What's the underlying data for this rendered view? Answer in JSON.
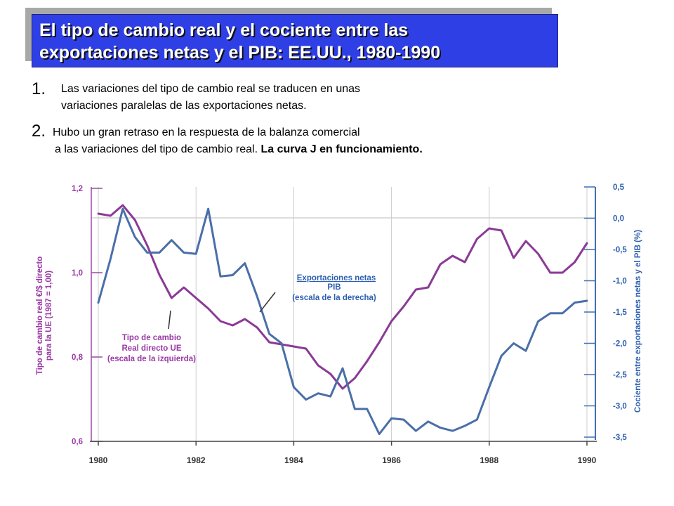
{
  "slide": {
    "title_line1": "El tipo de cambio real y el cociente entre las",
    "title_line2": "exportaciones netas y el PIB:  EE.UU., 1980-1990",
    "bullets": [
      {
        "num": "1.",
        "line1": "Las variaciones del tipo de cambio real se traducen en unas",
        "line2": "variaciones paralelas de las exportaciones netas."
      },
      {
        "num": "2.",
        "line1": "Hubo un gran retraso en la respuesta de la balanza comercial",
        "line2_plain": "a las variaciones del tipo de cambio real.  ",
        "line2_bold": "La curva J en funcionamiento."
      }
    ]
  },
  "chart_data": {
    "type": "line",
    "x_ticks": [
      "1980",
      "1982",
      "1984",
      "1986",
      "1988",
      "1990"
    ],
    "xlim": [
      1980,
      1990
    ],
    "left_axis": {
      "label_line1": "Tipo de cambio real €/$ directo",
      "label_line2": "para la UE (1987 = 1,00)",
      "ticks": [
        "1,2",
        "1,0",
        "0,8",
        "0,6"
      ],
      "ylim": [
        0.6,
        1.2
      ]
    },
    "right_axis": {
      "label": "Cociente entre exportaciones netas y el PIB (%)",
      "ticks": [
        "0,5",
        "0,0",
        "-0,5",
        "-1,0",
        "-1,5",
        "-2,0",
        "-2,5",
        "-3,0",
        "-3,5"
      ],
      "ylim": [
        -3.5,
        0.5
      ]
    },
    "series": [
      {
        "name": "Tipo de cambio Real directo UE (escala de la izquierda)",
        "label_line1": "Tipo de cambio",
        "label_line2": "Real directo UE",
        "label_line3": "(escala de la izquierda)",
        "axis": "left",
        "color": "#8b3a96",
        "x": [
          1980.0,
          1980.25,
          1980.5,
          1980.75,
          1981.0,
          1981.25,
          1981.5,
          1981.75,
          1982.0,
          1982.25,
          1982.5,
          1982.75,
          1983.0,
          1983.25,
          1983.5,
          1983.75,
          1984.0,
          1984.25,
          1984.5,
          1984.75,
          1985.0,
          1985.25,
          1985.5,
          1985.75,
          1986.0,
          1986.25,
          1986.5,
          1986.75,
          1987.0,
          1987.25,
          1987.5,
          1987.75,
          1988.0,
          1988.25,
          1988.5,
          1988.75,
          1989.0,
          1989.25,
          1989.5,
          1989.75,
          1990.0
        ],
        "values": [
          1.14,
          1.135,
          1.16,
          1.125,
          1.065,
          0.995,
          0.94,
          0.965,
          0.94,
          0.915,
          0.885,
          0.875,
          0.89,
          0.87,
          0.835,
          0.83,
          0.825,
          0.82,
          0.78,
          0.76,
          0.725,
          0.75,
          0.79,
          0.835,
          0.885,
          0.92,
          0.96,
          0.965,
          1.02,
          1.04,
          1.025,
          1.08,
          1.105,
          1.1,
          1.035,
          1.075,
          1.045,
          1.0,
          1.0,
          1.025,
          1.07
        ]
      },
      {
        "name": "Exportaciones netas PIB (escala de la derecha)",
        "label_line1": "Exportaciones netas",
        "label_line2": "PIB",
        "label_line3": "(escala de la derecha)",
        "axis": "right",
        "color": "#4a6fa8",
        "x": [
          1980.0,
          1980.25,
          1980.5,
          1980.75,
          1981.0,
          1981.25,
          1981.5,
          1981.75,
          1982.0,
          1982.25,
          1982.5,
          1982.75,
          1983.0,
          1983.25,
          1983.5,
          1983.75,
          1984.0,
          1984.25,
          1984.5,
          1984.75,
          1985.0,
          1985.25,
          1985.5,
          1985.75,
          1986.0,
          1986.25,
          1986.5,
          1986.75,
          1987.0,
          1987.25,
          1987.5,
          1987.75,
          1988.0,
          1988.25,
          1988.5,
          1988.75,
          1989.0,
          1989.25,
          1989.5,
          1989.75,
          1990.0
        ],
        "values": [
          -1.35,
          -0.65,
          0.15,
          -0.3,
          -0.55,
          -0.55,
          -0.35,
          -0.55,
          -0.57,
          0.15,
          -0.93,
          -0.91,
          -0.72,
          -1.25,
          -1.85,
          -2.0,
          -2.7,
          -2.9,
          -2.8,
          -2.85,
          -2.4,
          -3.05,
          -3.05,
          -3.45,
          -3.2,
          -3.22,
          -3.4,
          -3.25,
          -3.35,
          -3.4,
          -3.32,
          -3.22,
          -2.7,
          -2.2,
          -2.0,
          -2.12,
          -1.65,
          -1.52,
          -1.52,
          -1.35,
          -1.32
        ]
      }
    ]
  }
}
